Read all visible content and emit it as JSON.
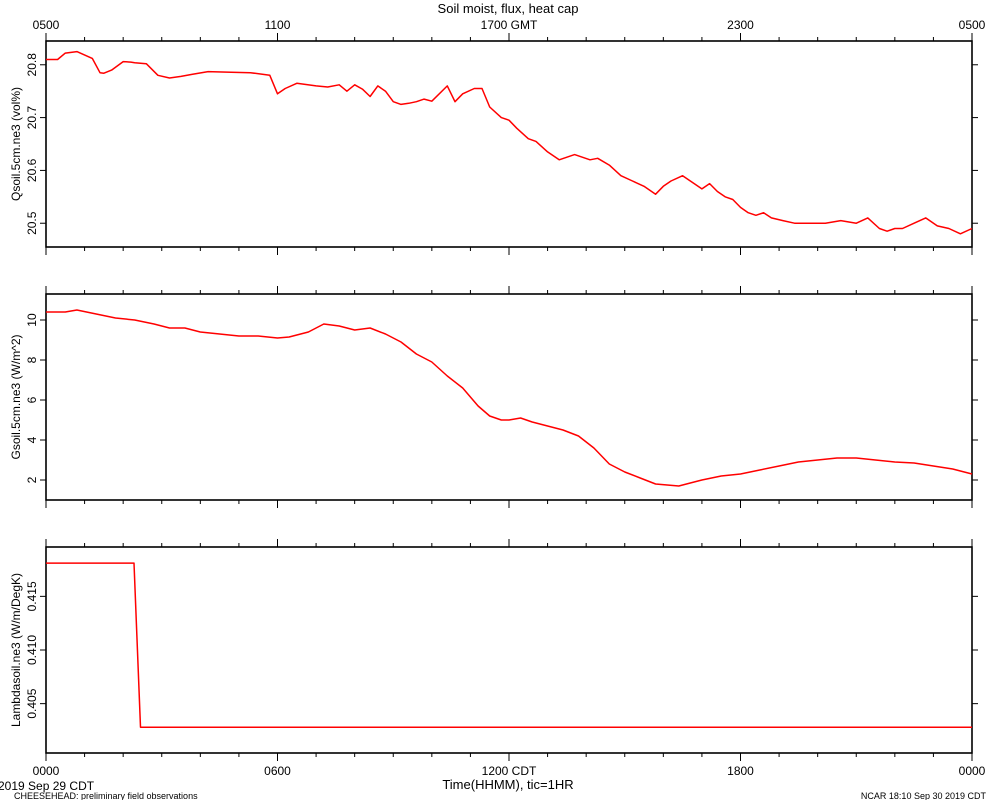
{
  "page": {
    "title": "Soil moist, flux, heat cap",
    "x_axis_label": "Time(HHMM), tic=1HR",
    "footer_left_date": "2019 Sep 29 CDT",
    "footer_left_note": "CHEESEHEAD: preliminary field observations",
    "footer_right": "NCAR 18:10 Sep 30 2019 CDT"
  },
  "chart_data": [
    {
      "type": "line",
      "xlim": [
        0,
        24
      ],
      "x_unit": "hours since 0000 CDT",
      "top_tick_labels": [
        "0500",
        "1100",
        "1700 GMT",
        "2300",
        "0500"
      ],
      "top_tick_positions": [
        0,
        6,
        12,
        18,
        24
      ],
      "ylabel": "Qsoil.5cm.ne3 (vol%)",
      "ylim": [
        20.455,
        20.845
      ],
      "yticks": [
        20.5,
        20.6,
        20.7,
        20.8
      ],
      "ytick_labels": [
        "20.5",
        "20.6",
        "20.7",
        "20.8"
      ],
      "color": "#ff0000",
      "series": [
        {
          "x": [
            0,
            0.3,
            0.5,
            0.8,
            1.2,
            1.4,
            1.5,
            1.7,
            2.0,
            2.2,
            2.3,
            2.6,
            2.9,
            3.2,
            3.5,
            3.8,
            4.2,
            4.8,
            5.3,
            5.8,
            6.0,
            6.2,
            6.5,
            7.0,
            7.3,
            7.6,
            7.8,
            8.0,
            8.2,
            8.4,
            8.6,
            8.8,
            9.0,
            9.2,
            9.4,
            9.6,
            9.8,
            10.0,
            10.4,
            10.6,
            10.8,
            11.1,
            11.3,
            11.5,
            11.8,
            12.0,
            12.2,
            12.5,
            12.7,
            13.0,
            13.3,
            13.5,
            13.7,
            13.9,
            14.1,
            14.3,
            14.6,
            14.9,
            15.2,
            15.5,
            15.8,
            16.0,
            16.2,
            16.5,
            16.8,
            17.0,
            17.2,
            17.4,
            17.6,
            17.8,
            18.0,
            18.2,
            18.4,
            18.6,
            18.8,
            19.1,
            19.4,
            19.8,
            20.2,
            20.6,
            21.0,
            21.3,
            21.6,
            21.8,
            22.0,
            22.2,
            22.5,
            22.8,
            23.1,
            23.4,
            23.7,
            24.0
          ],
          "y": [
            20.81,
            20.81,
            20.822,
            20.825,
            20.812,
            20.785,
            20.784,
            20.79,
            20.806,
            20.805,
            20.804,
            20.802,
            20.78,
            20.775,
            20.778,
            20.782,
            20.787,
            20.786,
            20.785,
            20.78,
            20.745,
            20.755,
            20.765,
            20.76,
            20.758,
            20.762,
            20.75,
            20.762,
            20.754,
            20.74,
            20.76,
            20.75,
            20.73,
            20.725,
            20.727,
            20.73,
            20.735,
            20.731,
            20.76,
            20.73,
            20.745,
            20.755,
            20.755,
            20.72,
            20.7,
            20.695,
            20.68,
            20.66,
            20.655,
            20.635,
            20.62,
            20.625,
            20.63,
            20.625,
            20.62,
            20.623,
            20.61,
            20.59,
            20.58,
            20.57,
            20.555,
            20.57,
            20.58,
            20.59,
            20.575,
            20.565,
            20.575,
            20.56,
            20.55,
            20.545,
            20.53,
            20.52,
            20.515,
            20.52,
            20.51,
            20.505,
            20.5,
            20.5,
            20.5,
            20.505,
            20.5,
            20.51,
            20.49,
            20.485,
            20.49,
            20.49,
            20.5,
            20.51,
            20.495,
            20.49,
            20.48,
            20.49
          ]
        }
      ]
    },
    {
      "type": "line",
      "xlim": [
        0,
        24
      ],
      "ylabel": "Gsoil.5cm.ne3 (W/m^2)",
      "ylim": [
        1.0,
        11.3
      ],
      "yticks": [
        2,
        4,
        6,
        8,
        10
      ],
      "ytick_labels": [
        "2",
        "4",
        "6",
        "8",
        "10"
      ],
      "color": "#ff0000",
      "series": [
        {
          "x": [
            0,
            0.5,
            0.8,
            1.3,
            1.8,
            2.3,
            2.8,
            3.2,
            3.6,
            4.0,
            4.5,
            5.0,
            5.5,
            6.0,
            6.3,
            6.8,
            7.2,
            7.6,
            8.0,
            8.4,
            8.8,
            9.2,
            9.6,
            10.0,
            10.4,
            10.8,
            11.2,
            11.5,
            11.8,
            12.0,
            12.3,
            12.6,
            13.0,
            13.4,
            13.8,
            14.2,
            14.6,
            15.0,
            15.4,
            15.8,
            16.1,
            16.4,
            16.7,
            17.0,
            17.5,
            18.0,
            18.5,
            19.0,
            19.5,
            20.0,
            20.5,
            21.0,
            21.5,
            22.0,
            22.5,
            23.0,
            23.5,
            24.0
          ],
          "y": [
            10.4,
            10.4,
            10.5,
            10.3,
            10.1,
            10.0,
            9.8,
            9.6,
            9.6,
            9.4,
            9.3,
            9.2,
            9.2,
            9.1,
            9.15,
            9.4,
            9.8,
            9.7,
            9.5,
            9.6,
            9.3,
            8.9,
            8.3,
            7.9,
            7.2,
            6.6,
            5.7,
            5.2,
            5.0,
            5.0,
            5.1,
            4.9,
            4.7,
            4.5,
            4.2,
            3.6,
            2.8,
            2.4,
            2.1,
            1.8,
            1.75,
            1.7,
            1.85,
            2.0,
            2.2,
            2.3,
            2.5,
            2.7,
            2.9,
            3.0,
            3.1,
            3.1,
            3.0,
            2.9,
            2.85,
            2.7,
            2.55,
            2.3
          ]
        }
      ]
    },
    {
      "type": "line",
      "xlim": [
        0,
        24
      ],
      "xticks": [
        0,
        6,
        12,
        18,
        24
      ],
      "xtick_labels": [
        "0000",
        "0600",
        "1200 CDT",
        "1800",
        "0000"
      ],
      "ylabel": "Lambdasoil.ne3 (W/m/DegK)",
      "ylim": [
        0.4004,
        0.4196
      ],
      "yticks": [
        0.405,
        0.41,
        0.415
      ],
      "ytick_labels": [
        "0.405",
        "0.410",
        "0.415"
      ],
      "color": "#ff0000",
      "series": [
        {
          "x": [
            0,
            2.28,
            2.45,
            24.0
          ],
          "y": [
            0.4181,
            0.4181,
            0.4028,
            0.4028
          ]
        }
      ]
    }
  ]
}
